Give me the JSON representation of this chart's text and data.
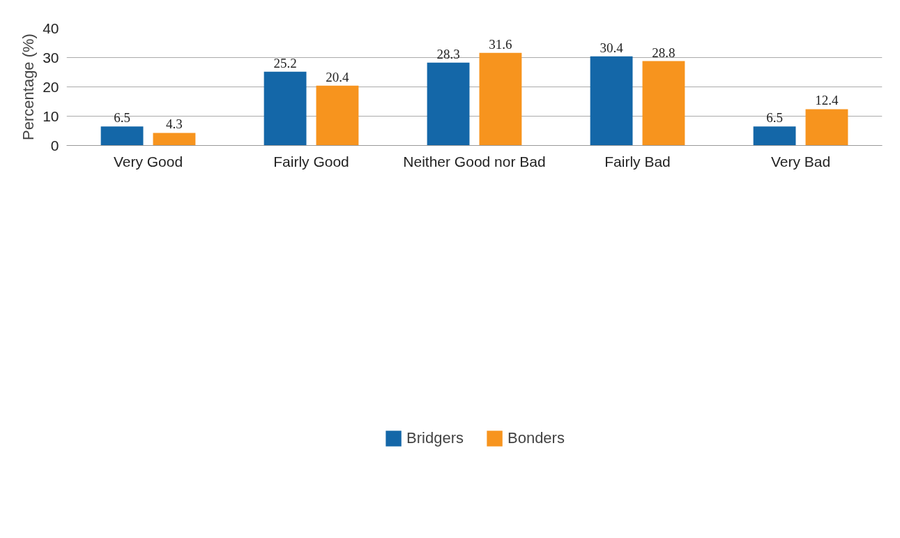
{
  "chart_data": {
    "type": "bar",
    "ylabel": "Percentage (%)",
    "categories": [
      "Very Good",
      "Fairly Good",
      "Neither Good nor Bad",
      "Fairly Bad",
      "Very Bad"
    ],
    "series": [
      {
        "name": "Bridgers",
        "color": "#1467a8",
        "values": [
          6.5,
          25.2,
          28.3,
          30.4,
          6.5
        ]
      },
      {
        "name": "Bonders",
        "color": "#f7941e",
        "values": [
          4.3,
          20.4,
          31.6,
          28.8,
          12.4
        ]
      }
    ],
    "ylim": [
      0,
      40
    ],
    "yticks": [
      0,
      10,
      20,
      30,
      40
    ],
    "grid": "y",
    "legend": "bottom",
    "data_labels": true
  }
}
